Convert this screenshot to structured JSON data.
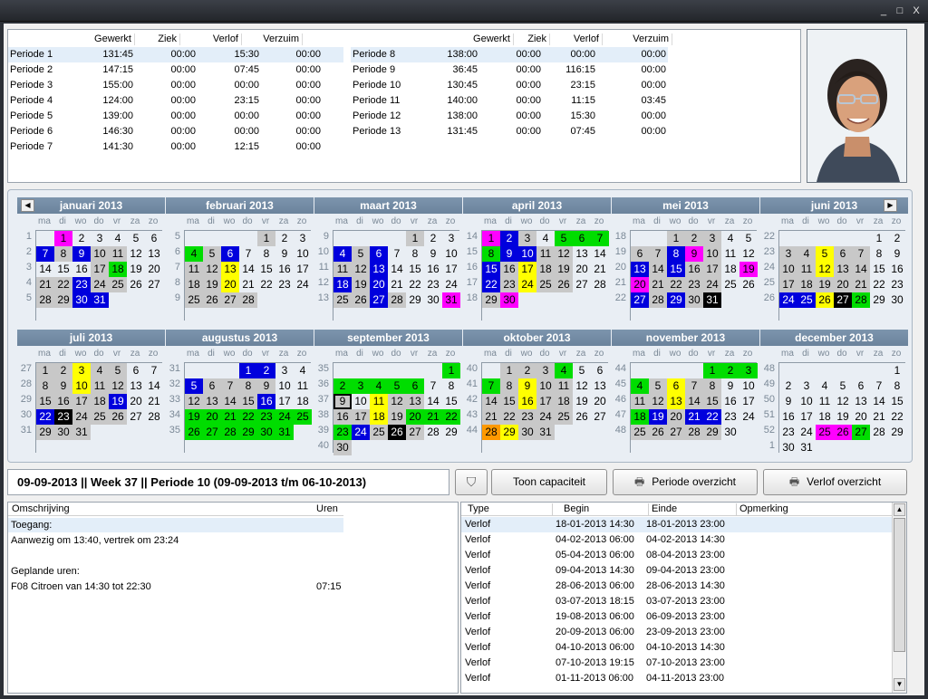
{
  "window": {
    "minimize": "_",
    "restore": "□",
    "close": "X"
  },
  "periods": {
    "headers": [
      "Gewerkt",
      "Ziek",
      "Verlof",
      "Verzuim"
    ],
    "left": [
      [
        "Periode 1",
        "131:45",
        "00:00",
        "15:30",
        "00:00"
      ],
      [
        "Periode 2",
        "147:15",
        "00:00",
        "07:45",
        "00:00"
      ],
      [
        "Periode 3",
        "155:00",
        "00:00",
        "00:00",
        "00:00"
      ],
      [
        "Periode 4",
        "124:00",
        "00:00",
        "23:15",
        "00:00"
      ],
      [
        "Periode 5",
        "139:00",
        "00:00",
        "00:00",
        "00:00"
      ],
      [
        "Periode 6",
        "146:30",
        "00:00",
        "00:00",
        "00:00"
      ],
      [
        "Periode 7",
        "141:30",
        "00:00",
        "12:15",
        "00:00"
      ]
    ],
    "right": [
      [
        "Periode 8",
        "138:00",
        "00:00",
        "00:00",
        "00:00"
      ],
      [
        "Periode 9",
        "36:45",
        "00:00",
        "116:15",
        "00:00"
      ],
      [
        "Periode 10",
        "130:45",
        "00:00",
        "23:15",
        "00:00"
      ],
      [
        "Periode 11",
        "140:00",
        "00:00",
        "11:15",
        "03:45"
      ],
      [
        "Periode 12",
        "138:00",
        "00:00",
        "15:30",
        "00:00"
      ],
      [
        "Periode 13",
        "131:45",
        "00:00",
        "07:45",
        "00:00"
      ]
    ]
  },
  "calendar": {
    "dow": [
      "ma",
      "di",
      "wo",
      "do",
      "vr",
      "za",
      "zo"
    ],
    "colors": {
      "m": "#ff00ff",
      "b": "#0000dd",
      "g": "#00dd00",
      "y": "#ffff00",
      "k": "#000000",
      "s": "#c8c8c8",
      "o": "#ff9900"
    },
    "months": [
      {
        "name": "januari 2013",
        "start": 1,
        "days": 31,
        "weeks": [
          "1",
          "2",
          "3",
          "4",
          "5"
        ],
        "mark": {
          "1": "m",
          "7": "b",
          "8": "s",
          "9": "b",
          "10": "s",
          "11": "s",
          "17": "s",
          "18": "g",
          "21": "s",
          "22": "s",
          "23": "b",
          "24": "s",
          "25": "s",
          "28": "s",
          "29": "s",
          "30": "b",
          "31": "b"
        }
      },
      {
        "name": "februari 2013",
        "start": 4,
        "days": 28,
        "weeks": [
          "5",
          "6",
          "7",
          "8",
          "9"
        ],
        "mark": {
          "1": "s",
          "4": "g",
          "5": "s",
          "6": "b",
          "11": "s",
          "12": "s",
          "13": "y",
          "18": "s",
          "19": "s",
          "20": "y",
          "25": "s",
          "26": "s",
          "27": "s",
          "28": "s"
        }
      },
      {
        "name": "maart 2013",
        "start": 4,
        "days": 31,
        "weeks": [
          "9",
          "10",
          "11",
          "12",
          "13"
        ],
        "mark": {
          "1": "s",
          "4": "b",
          "5": "s",
          "6": "b",
          "11": "s",
          "12": "s",
          "13": "b",
          "18": "b",
          "19": "s",
          "20": "b",
          "25": "s",
          "26": "s",
          "27": "b",
          "28": "s",
          "31": "m"
        }
      },
      {
        "name": "april 2013",
        "start": 0,
        "days": 30,
        "weeks": [
          "14",
          "15",
          "16",
          "17",
          "18"
        ],
        "mark": {
          "1": "m",
          "2": "b",
          "3": "s",
          "5": "g",
          "6": "g",
          "7": "g",
          "8": "g",
          "9": "b",
          "10": "b",
          "11": "s",
          "12": "s",
          "15": "b",
          "16": "s",
          "17": "y",
          "18": "s",
          "19": "s",
          "22": "b",
          "23": "s",
          "24": "y",
          "25": "s",
          "26": "s",
          "29": "s",
          "30": "m"
        }
      },
      {
        "name": "mei 2013",
        "start": 2,
        "days": 31,
        "weeks": [
          "18",
          "19",
          "20",
          "21",
          "22"
        ],
        "mark": {
          "1": "s",
          "2": "s",
          "3": "s",
          "6": "s",
          "7": "s",
          "8": "b",
          "9": "m",
          "10": "s",
          "13": "b",
          "14": "s",
          "15": "b",
          "16": "s",
          "17": "s",
          "19": "m",
          "20": "m",
          "21": "s",
          "22": "s",
          "23": "s",
          "24": "s",
          "27": "b",
          "28": "s",
          "29": "b",
          "30": "s",
          "31": "k"
        }
      },
      {
        "name": "juni 2013",
        "start": 5,
        "days": 30,
        "weeks": [
          "22",
          "23",
          "24",
          "25",
          "26"
        ],
        "mark": {
          "3": "s",
          "4": "s",
          "5": "y",
          "6": "s",
          "7": "s",
          "10": "s",
          "11": "s",
          "12": "y",
          "13": "s",
          "14": "s",
          "17": "s",
          "18": "s",
          "19": "s",
          "20": "s",
          "21": "s",
          "24": "b",
          "25": "b",
          "26": "y",
          "27": "k",
          "28": "g"
        }
      },
      {
        "name": "juli 2013",
        "start": 0,
        "days": 31,
        "weeks": [
          "27",
          "28",
          "29",
          "30",
          "31"
        ],
        "mark": {
          "1": "s",
          "2": "s",
          "3": "y",
          "4": "s",
          "5": "s",
          "8": "s",
          "9": "s",
          "10": "y",
          "11": "s",
          "12": "s",
          "15": "s",
          "16": "s",
          "17": "s",
          "18": "s",
          "19": "b",
          "22": "b",
          "23": "k",
          "24": "s",
          "25": "s",
          "26": "s",
          "29": "s",
          "30": "s",
          "31": "s"
        }
      },
      {
        "name": "augustus 2013",
        "start": 3,
        "days": 31,
        "weeks": [
          "31",
          "32",
          "33",
          "34",
          "35"
        ],
        "mark": {
          "1": "b",
          "2": "b",
          "5": "b",
          "6": "s",
          "7": "s",
          "8": "s",
          "9": "s",
          "12": "s",
          "13": "s",
          "14": "s",
          "15": "s",
          "16": "b",
          "19": "g",
          "20": "g",
          "21": "g",
          "22": "g",
          "23": "g",
          "24": "g",
          "25": "g",
          "26": "g",
          "27": "g",
          "28": "g",
          "29": "g",
          "30": "g",
          "31": "g"
        }
      },
      {
        "name": "september 2013",
        "start": 6,
        "days": 30,
        "weeks": [
          "35",
          "36",
          "37",
          "38",
          "39",
          "40"
        ],
        "mark": {
          "1": "g",
          "2": "g",
          "3": "g",
          "4": "g",
          "5": "g",
          "6": "g",
          "9": "s",
          "11": "y",
          "12": "s",
          "13": "s",
          "16": "s",
          "17": "s",
          "18": "y",
          "19": "s",
          "20": "g",
          "21": "g",
          "22": "g",
          "23": "g",
          "24": "b",
          "25": "s",
          "26": "k",
          "27": "s",
          "30": "s"
        }
      },
      {
        "name": "oktober 2013",
        "start": 1,
        "days": 31,
        "weeks": [
          "40",
          "41",
          "42",
          "43",
          "44"
        ],
        "mark": {
          "1": "s",
          "2": "s",
          "3": "s",
          "4": "g",
          "7": "g",
          "8": "s",
          "9": "y",
          "10": "s",
          "11": "s",
          "14": "s",
          "15": "s",
          "16": "y",
          "17": "s",
          "18": "s",
          "21": "s",
          "22": "s",
          "23": "s",
          "24": "s",
          "25": "s",
          "28": "o",
          "29": "y",
          "30": "s",
          "31": "s"
        }
      },
      {
        "name": "november 2013",
        "start": 4,
        "days": 30,
        "weeks": [
          "44",
          "45",
          "46",
          "47",
          "48"
        ],
        "mark": {
          "1": "g",
          "2": "g",
          "3": "g",
          "4": "g",
          "5": "s",
          "6": "y",
          "7": "s",
          "8": "s",
          "11": "s",
          "12": "s",
          "13": "y",
          "14": "s",
          "15": "s",
          "18": "g",
          "19": "b",
          "20": "s",
          "21": "b",
          "22": "b",
          "25": "s",
          "26": "s",
          "27": "s",
          "28": "s",
          "29": "s"
        }
      },
      {
        "name": "december 2013",
        "start": 6,
        "days": 31,
        "weeks": [
          "48",
          "49",
          "50",
          "51",
          "52",
          "1"
        ],
        "mark": {
          "25": "m",
          "26": "m",
          "27": "g"
        }
      }
    ]
  },
  "status": {
    "text": "09-09-2013  ||  Week 37  ||  Periode 10  (09-09-2013 t/m 06-10-2013)"
  },
  "buttons": {
    "capacity": "Toon capaciteit",
    "period_overview": "Periode overzicht",
    "leave_overview": "Verlof overzicht"
  },
  "description": {
    "headers": [
      "Omschrijving",
      "Uren"
    ],
    "lines": [
      {
        "text": "Toegang:",
        "hours": ""
      },
      {
        "text": "Aanwezig om 13:40, vertrek om 23:24",
        "hours": ""
      },
      {
        "text": "",
        "hours": ""
      },
      {
        "text": "Geplande uren:",
        "hours": ""
      },
      {
        "text": "F08 Citroen van 14:30 tot 22:30",
        "hours": "07:15"
      }
    ]
  },
  "types": {
    "headers": [
      "Type",
      "Begin",
      "Einde",
      "Opmerking"
    ],
    "rows": [
      [
        "Verlof",
        "18-01-2013 14:30",
        "18-01-2013 23:00"
      ],
      [
        "Verlof",
        "04-02-2013 06:00",
        "04-02-2013 14:30"
      ],
      [
        "Verlof",
        "05-04-2013 06:00",
        "08-04-2013 23:00"
      ],
      [
        "Verlof",
        "09-04-2013 14:30",
        "09-04-2013 23:00"
      ],
      [
        "Verlof",
        "28-06-2013 06:00",
        "28-06-2013 14:30"
      ],
      [
        "Verlof",
        "03-07-2013 18:15",
        "03-07-2013 23:00"
      ],
      [
        "Verlof",
        "19-08-2013 06:00",
        "06-09-2013 23:00"
      ],
      [
        "Verlof",
        "20-09-2013 06:00",
        "23-09-2013 23:00"
      ],
      [
        "Verlof",
        "04-10-2013 06:00",
        "04-10-2013 14:30"
      ],
      [
        "Verlof",
        "07-10-2013 19:15",
        "07-10-2013 23:00"
      ],
      [
        "Verlof",
        "01-11-2013 06:00",
        "04-11-2013 23:00"
      ]
    ]
  }
}
